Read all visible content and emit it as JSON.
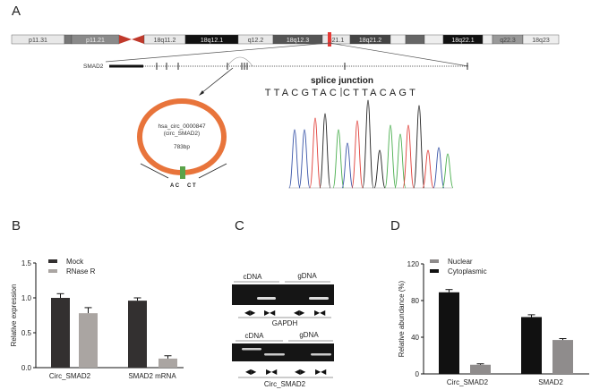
{
  "panels": {
    "a": "A",
    "b": "B",
    "c": "C",
    "d": "D"
  },
  "panel_a": {
    "chromosome_bands": [
      {
        "label": "p11.31",
        "shade": "#e8e8e8"
      },
      {
        "label": "",
        "shade": "#777"
      },
      {
        "label": "p11.21",
        "shade": "#8a8a8a"
      },
      {
        "label": "",
        "shade": "#c0392b"
      },
      {
        "label": "18q11.2",
        "shade": "#e8e8e8"
      },
      {
        "label": "18q12.1",
        "shade": "#111"
      },
      {
        "label": "q12.2",
        "shade": "#e8e8e8"
      },
      {
        "label": "18q12.3",
        "shade": "#555"
      },
      {
        "label": "q21.1",
        "shade": "#e8e8e8"
      },
      {
        "label": "18q21.2",
        "shade": "#444"
      },
      {
        "label": "",
        "shade": "#eee"
      },
      {
        "label": "",
        "shade": "#666"
      },
      {
        "label": "",
        "shade": "#eee"
      },
      {
        "label": "18q22.1",
        "shade": "#111"
      },
      {
        "label": "",
        "shade": "#eee"
      },
      {
        "label": "q22.3",
        "shade": "#999"
      },
      {
        "label": "18q23",
        "shade": "#eee"
      }
    ],
    "gene_label": "SMAD2",
    "circ_name": "hsa_circ_0000847",
    "circ_alias": "(circ_SMAD2)",
    "circ_length": "783bp",
    "junction_left": "A C",
    "junction_right": "C T",
    "splice_title": "splice junction",
    "sequence_left": "TTACGTAC",
    "sequence_right": "CTTACAGT",
    "circle_color": "#e8743b",
    "junction_color": "#5aa34a",
    "base_colors": {
      "A": "#4caf50",
      "C": "#3a55a8",
      "G": "#222222",
      "T": "#e0403a"
    }
  },
  "panel_c": {
    "gel_top": {
      "left_label": "cDNA",
      "right_label": "gDNA",
      "gene": "GAPDH"
    },
    "gel_bottom": {
      "left_label": "cDNA",
      "right_label": "gDNA",
      "gene": "Circ_SMAD2"
    },
    "primer_divergent": "◀▶",
    "primer_convergent": "▶◀"
  },
  "chart_data": [
    {
      "type": "bar",
      "panel": "B",
      "ylabel": "Relative expression",
      "ylim": [
        0,
        1.5
      ],
      "yticks": [
        "0.0",
        "0.5",
        "1.0",
        "1.5"
      ],
      "categories": [
        "Circ_SMAD2",
        "SMAD2 mRNA"
      ],
      "legend_position": "top-left",
      "series": [
        {
          "name": "Mock",
          "color": "#333030",
          "values": [
            1.0,
            0.96
          ],
          "errors": [
            0.06,
            0.04
          ]
        },
        {
          "name": "RNase R",
          "color": "#aaa5a2",
          "values": [
            0.78,
            0.13
          ],
          "errors": [
            0.08,
            0.04
          ]
        }
      ]
    },
    {
      "type": "bar",
      "panel": "D",
      "ylabel": "Relative abundance (%)",
      "ylim": [
        0,
        120
      ],
      "yticks": [
        "0",
        "40",
        "80",
        "120"
      ],
      "categories": [
        "Circ_SMAD2",
        "SMAD2"
      ],
      "legend_position": "top-left",
      "series": [
        {
          "name": "Cytoplasmic",
          "color": "#111111",
          "values": [
            89,
            62
          ],
          "errors": [
            3,
            2.5
          ]
        },
        {
          "name": "Nuclear",
          "color": "#8f8c8c",
          "values": [
            10,
            37
          ],
          "errors": [
            1,
            1.5
          ]
        }
      ],
      "legend_order": [
        "Nuclear",
        "Cytoplasmic"
      ]
    }
  ]
}
